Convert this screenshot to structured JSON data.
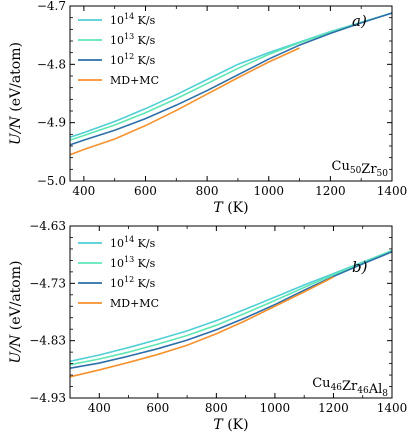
{
  "chart_data": [
    {
      "type": "line",
      "panel_tag": "a)",
      "composition": [
        {
          "el": "Cu",
          "sub": "50"
        },
        {
          "el": "Zr",
          "sub": "50"
        }
      ],
      "xlabel": {
        "var": "T",
        "unit": "(K)"
      },
      "ylabel": {
        "var": "U/N",
        "unit": "(eV/atom)"
      },
      "xlim": [
        355,
        1400
      ],
      "ylim": [
        -5.0,
        -4.7
      ],
      "xticks": [
        400,
        600,
        800,
        1000,
        1200,
        1400
      ],
      "yticks": [
        -5.0,
        -4.9,
        -4.8,
        -4.7
      ],
      "ytick_labels": [
        "−5.0",
        "−4.9",
        "−4.8",
        "−4.7"
      ],
      "legend_placement": "top-left",
      "series": [
        {
          "name": {
            "base": "10",
            "exp": "14",
            "unit": "K/s"
          },
          "color": "#4fcfd6",
          "x": [
            355,
            400,
            500,
            600,
            700,
            800,
            900,
            1000,
            1100,
            1200,
            1300,
            1400
          ],
          "y": [
            -4.925,
            -4.917,
            -4.898,
            -4.876,
            -4.852,
            -4.826,
            -4.8,
            -4.78,
            -4.762,
            -4.744,
            -4.728,
            -4.712
          ]
        },
        {
          "name": {
            "base": "10",
            "exp": "13",
            "unit": "K/s"
          },
          "color": "#5ee6b4",
          "x": [
            355,
            400,
            500,
            600,
            700,
            800,
            900,
            1000,
            1100,
            1200,
            1300,
            1400
          ],
          "y": [
            -4.93,
            -4.922,
            -4.904,
            -4.883,
            -4.859,
            -4.833,
            -4.807,
            -4.783,
            -4.763,
            -4.745,
            -4.728,
            -4.712
          ]
        },
        {
          "name": {
            "base": "10",
            "exp": "12",
            "unit": "K/s"
          },
          "color": "#2c6faa",
          "x": [
            355,
            400,
            500,
            600,
            700,
            800,
            900,
            1000,
            1100,
            1200,
            1300,
            1400
          ],
          "y": [
            -4.938,
            -4.93,
            -4.913,
            -4.893,
            -4.87,
            -4.845,
            -4.818,
            -4.791,
            -4.767,
            -4.747,
            -4.729,
            -4.712
          ]
        },
        {
          "name": {
            "text": "MD+MC"
          },
          "color": "#f7912c",
          "x": [
            355,
            400,
            500,
            600,
            700,
            800,
            900,
            1000,
            1100
          ],
          "y": [
            -4.955,
            -4.946,
            -4.928,
            -4.905,
            -4.879,
            -4.851,
            -4.823,
            -4.796,
            -4.772
          ]
        }
      ]
    },
    {
      "type": "line",
      "panel_tag": "b)",
      "composition": [
        {
          "el": "Cu",
          "sub": "46"
        },
        {
          "el": "Zr",
          "sub": "46"
        },
        {
          "el": "Al",
          "sub": "8"
        }
      ],
      "xlabel": {
        "var": "T",
        "unit": "(K)"
      },
      "ylabel": {
        "var": "U/N",
        "unit": "(eV/atom)"
      },
      "xlim": [
        300,
        1400
      ],
      "ylim": [
        -4.93,
        -4.63
      ],
      "xticks": [
        400,
        600,
        800,
        1000,
        1200,
        1400
      ],
      "yticks": [
        -4.93,
        -4.83,
        -4.73,
        -4.63
      ],
      "ytick_labels": [
        "−4.93",
        "−4.83",
        "−4.73",
        "−4.63"
      ],
      "legend_placement": "top-left",
      "series": [
        {
          "name": {
            "base": "10",
            "exp": "14",
            "unit": "K/s"
          },
          "color": "#4fcfd6",
          "x": [
            300,
            400,
            500,
            600,
            700,
            800,
            900,
            1000,
            1100,
            1200,
            1300,
            1400
          ],
          "y": [
            -4.866,
            -4.855,
            -4.842,
            -4.828,
            -4.813,
            -4.795,
            -4.775,
            -4.754,
            -4.733,
            -4.713,
            -4.693,
            -4.673
          ]
        },
        {
          "name": {
            "base": "10",
            "exp": "13",
            "unit": "K/s"
          },
          "color": "#5ee6b4",
          "x": [
            300,
            400,
            500,
            600,
            700,
            800,
            900,
            1000,
            1100,
            1200,
            1300,
            1400
          ],
          "y": [
            -4.872,
            -4.862,
            -4.85,
            -4.836,
            -4.821,
            -4.803,
            -4.782,
            -4.76,
            -4.737,
            -4.715,
            -4.694,
            -4.673
          ]
        },
        {
          "name": {
            "base": "10",
            "exp": "12",
            "unit": "K/s"
          },
          "color": "#2c6faa",
          "x": [
            300,
            400,
            500,
            600,
            700,
            800,
            900,
            1000,
            1100,
            1200,
            1300,
            1400
          ],
          "y": [
            -4.878,
            -4.869,
            -4.857,
            -4.844,
            -4.829,
            -4.811,
            -4.79,
            -4.767,
            -4.742,
            -4.718,
            -4.696,
            -4.675
          ]
        },
        {
          "name": {
            "text": "MD+MC"
          },
          "color": "#f7912c",
          "x": [
            300,
            400,
            500,
            600,
            700,
            800,
            900,
            1000,
            1100,
            1200
          ],
          "y": [
            -4.893,
            -4.881,
            -4.868,
            -4.854,
            -4.838,
            -4.818,
            -4.795,
            -4.77,
            -4.745,
            -4.719
          ]
        }
      ]
    }
  ]
}
